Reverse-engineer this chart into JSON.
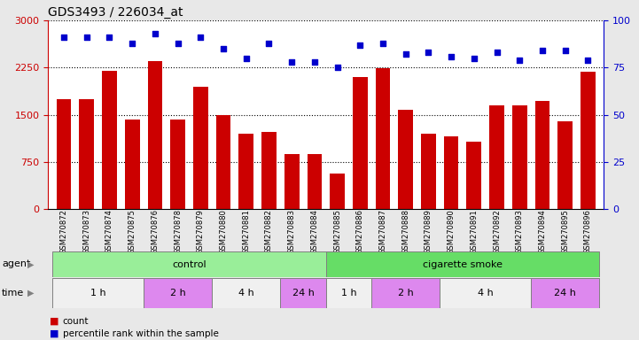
{
  "title": "GDS3493 / 226034_at",
  "samples": [
    "GSM270872",
    "GSM270873",
    "GSM270874",
    "GSM270875",
    "GSM270876",
    "GSM270878",
    "GSM270879",
    "GSM270880",
    "GSM270881",
    "GSM270882",
    "GSM270883",
    "GSM270884",
    "GSM270885",
    "GSM270886",
    "GSM270887",
    "GSM270888",
    "GSM270889",
    "GSM270890",
    "GSM270891",
    "GSM270892",
    "GSM270893",
    "GSM270894",
    "GSM270895",
    "GSM270896"
  ],
  "counts": [
    1750,
    1750,
    2200,
    1430,
    2350,
    1430,
    1950,
    1500,
    1200,
    1220,
    870,
    870,
    570,
    2100,
    2240,
    1580,
    1200,
    1160,
    1070,
    1650,
    1650,
    1720,
    1400,
    2190
  ],
  "percentile_ranks": [
    91,
    91,
    91,
    88,
    93,
    88,
    91,
    85,
    80,
    88,
    78,
    78,
    75,
    87,
    88,
    82,
    83,
    81,
    80,
    83,
    79,
    84,
    84,
    79
  ],
  "bar_color": "#cc0000",
  "dot_color": "#0000cc",
  "ylim_left": [
    0,
    3000
  ],
  "ylim_right": [
    0,
    100
  ],
  "yticks_left": [
    0,
    750,
    1500,
    2250,
    3000
  ],
  "yticks_right": [
    0,
    25,
    50,
    75,
    100
  ],
  "agent_groups": [
    {
      "label": "control",
      "start": 0,
      "end": 11,
      "color": "#99ee99"
    },
    {
      "label": "cigarette smoke",
      "start": 12,
      "end": 23,
      "color": "#66dd66"
    }
  ],
  "time_groups": [
    {
      "label": "1 h",
      "start": 0,
      "end": 3,
      "color": "#f0f0f0"
    },
    {
      "label": "2 h",
      "start": 4,
      "end": 6,
      "color": "#dd88ee"
    },
    {
      "label": "4 h",
      "start": 7,
      "end": 9,
      "color": "#f0f0f0"
    },
    {
      "label": "24 h",
      "start": 10,
      "end": 11,
      "color": "#dd88ee"
    },
    {
      "label": "1 h",
      "start": 12,
      "end": 13,
      "color": "#f0f0f0"
    },
    {
      "label": "2 h",
      "start": 14,
      "end": 16,
      "color": "#dd88ee"
    },
    {
      "label": "4 h",
      "start": 17,
      "end": 20,
      "color": "#f0f0f0"
    },
    {
      "label": "24 h",
      "start": 21,
      "end": 23,
      "color": "#dd88ee"
    }
  ],
  "bg_color": "#e8e8e8",
  "plot_bg": "#ffffff"
}
